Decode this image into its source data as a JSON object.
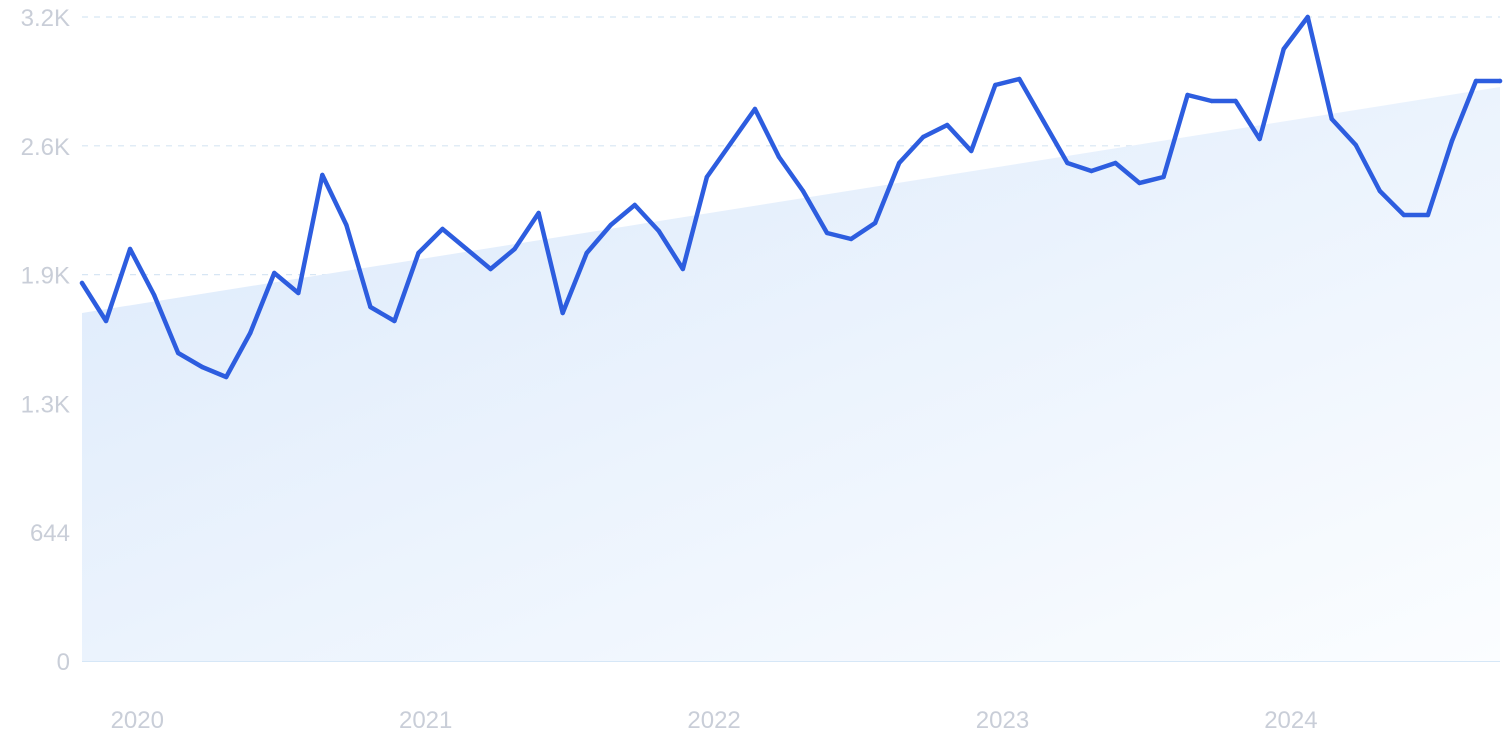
{
  "chart_data": {
    "type": "line",
    "title": "",
    "xlabel": "",
    "ylabel": "",
    "x_tick_labels": [
      "2020",
      "2021",
      "2022",
      "2023",
      "2024"
    ],
    "y_tick_labels": [
      "0",
      "644",
      "1.3K",
      "1.9K",
      "2.6K",
      "3.2K"
    ],
    "y_tick_values": [
      0,
      644,
      1288,
      1932,
      2576,
      3220
    ],
    "ylim": [
      0,
      3220
    ],
    "xlim": [
      "2019-11",
      "2024-10"
    ],
    "grid": true,
    "legend": "none",
    "x": [
      "2019-11",
      "2019-12",
      "2020-01",
      "2020-02",
      "2020-03",
      "2020-04",
      "2020-05",
      "2020-06",
      "2020-07",
      "2020-08",
      "2020-09",
      "2020-10",
      "2020-11",
      "2020-12",
      "2021-01",
      "2021-02",
      "2021-03",
      "2021-04",
      "2021-05",
      "2021-06",
      "2021-07",
      "2021-08",
      "2021-09",
      "2021-10",
      "2021-11",
      "2021-12",
      "2022-01",
      "2022-02",
      "2022-03",
      "2022-04",
      "2022-05",
      "2022-06",
      "2022-07",
      "2022-08",
      "2022-09",
      "2022-10",
      "2022-11",
      "2022-12",
      "2023-01",
      "2023-02",
      "2023-03",
      "2023-04",
      "2023-05",
      "2023-06",
      "2023-07",
      "2023-08",
      "2023-09",
      "2023-10",
      "2023-11",
      "2023-12",
      "2024-01",
      "2024-02",
      "2024-03",
      "2024-04",
      "2024-05",
      "2024-06",
      "2024-07",
      "2024-08",
      "2024-09",
      "2024-10"
    ],
    "series": [
      {
        "values": [
          1890,
          1700,
          2060,
          1830,
          1540,
          1470,
          1420,
          1640,
          1940,
          1840,
          2430,
          2180,
          1770,
          1700,
          2040,
          2160,
          2060,
          1960,
          2060,
          2240,
          1740,
          2040,
          2180,
          2280,
          2150,
          1960,
          2420,
          2590,
          2760,
          2520,
          2350,
          2140,
          2110,
          2190,
          2490,
          2620,
          2680,
          2550,
          2880,
          2910,
          2700,
          2490,
          2450,
          2490,
          2390,
          2420,
          2830,
          2800,
          2800,
          2610,
          3060,
          3220,
          2710,
          2580,
          2350,
          2230,
          2230,
          2600,
          2900,
          2900
        ]
      }
    ],
    "trend": {
      "start": 1740,
      "end": 2870
    },
    "colors": {
      "line": "#2d5ddf",
      "area_top": "#dbe9fb",
      "area_bottom": "#fbfdff",
      "grid": "#d7e6f4",
      "tick_text": "#c9ced8"
    }
  }
}
